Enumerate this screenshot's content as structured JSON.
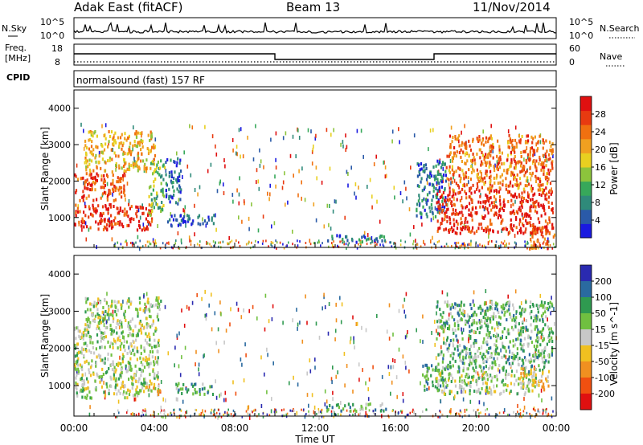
{
  "header": {
    "station": "Adak East (fitACF)",
    "beam": "Beam 13",
    "date": "11/Nov/2014"
  },
  "noise_panel": {
    "left_label": "N.Sky",
    "right_label": "N.Search",
    "left_ticks": [
      "10^5",
      "10^0"
    ],
    "right_ticks": [
      "10^5",
      "10^0"
    ]
  },
  "freq_panel": {
    "left_label_1": "Freq.",
    "left_label_2": "[MHz]",
    "left_ticks": [
      "18",
      "8"
    ],
    "right_ticks": [
      "60",
      "0"
    ],
    "right_label": "Nave",
    "cpid_label": "CPID",
    "mode": "normalsound (fast) 157 RF"
  },
  "chart_data": [
    {
      "type": "heatmap",
      "name": "power",
      "xlabel": "",
      "ylabel": "Slant Range [km]",
      "xlim": [
        "00:00",
        "24:00"
      ],
      "ylim": [
        180,
        4500
      ],
      "y_ticks": [
        "1000",
        "2000",
        "3000",
        "4000"
      ],
      "colorbar": {
        "label": "Power [dB]",
        "ticks": [
          "4",
          "8",
          "12",
          "16",
          "20",
          "24",
          "28"
        ],
        "colors": [
          "#1a1ae0",
          "#2a5aa8",
          "#2f8a7a",
          "#37a85a",
          "#8cc43c",
          "#e8d020",
          "#f0a020",
          "#f07010",
          "#e83a10",
          "#e01010"
        ]
      },
      "regions": [
        {
          "t0": 0.0,
          "t1": 3.9,
          "r0": 700,
          "r1": 1400,
          "level": 0.9
        },
        {
          "t0": 0.0,
          "t1": 2.5,
          "r0": 1500,
          "r1": 2300,
          "level": 0.85
        },
        {
          "t0": 0.5,
          "t1": 4.0,
          "r0": 2300,
          "r1": 3400,
          "level": 0.6
        },
        {
          "t0": 3.7,
          "t1": 4.5,
          "r0": 1100,
          "r1": 2600,
          "level": 0.4
        },
        {
          "t0": 4.5,
          "t1": 7.0,
          "r0": 800,
          "r1": 1100,
          "level": 0.12
        },
        {
          "t0": 4.5,
          "t1": 5.3,
          "r0": 1400,
          "r1": 2700,
          "level": 0.15
        },
        {
          "t0": 12.5,
          "t1": 15.5,
          "r0": 350,
          "r1": 550,
          "level": 0.25
        },
        {
          "t0": 17.0,
          "t1": 18.5,
          "r0": 1000,
          "r1": 2600,
          "level": 0.2
        },
        {
          "t0": 18.0,
          "t1": 23.8,
          "r0": 600,
          "r1": 1800,
          "level": 0.9
        },
        {
          "t0": 18.5,
          "t1": 23.8,
          "r0": 1800,
          "r1": 3300,
          "level": 0.75
        },
        {
          "t0": 22.5,
          "t1": 23.9,
          "r0": 180,
          "r1": 800,
          "level": 0.8
        }
      ]
    },
    {
      "type": "heatmap",
      "name": "velocity",
      "xlabel": "Time UT",
      "ylabel": "Slant Range [km]",
      "xlim": [
        "00:00",
        "24:00"
      ],
      "x_ticks": [
        "00:00",
        "04:00",
        "08:00",
        "12:00",
        "16:00",
        "20:00",
        "00:00"
      ],
      "ylim": [
        180,
        4500
      ],
      "y_ticks": [
        "1000",
        "2000",
        "3000",
        "4000"
      ],
      "colorbar": {
        "label": "Velocity [m s^-1]",
        "ticks": [
          "200",
          "100",
          "50",
          "15",
          "-15",
          "-50",
          "-100",
          "-200"
        ],
        "colors": [
          "#2a2ab0",
          "#2a6aa0",
          "#2f9a50",
          "#70c040",
          "#c8c8c8",
          "#f0c020",
          "#f09020",
          "#f05010",
          "#e01010"
        ]
      },
      "regions": [
        {
          "t0": 0.0,
          "t1": 4.2,
          "r0": 700,
          "r1": 2600,
          "level": 0.45
        },
        {
          "t0": 0.5,
          "t1": 4.3,
          "r0": 2600,
          "r1": 3400,
          "level": 0.45
        },
        {
          "t0": 3.5,
          "t1": 4.3,
          "r0": 800,
          "r1": 1100,
          "level": 0.62
        },
        {
          "t0": 5.0,
          "t1": 7.0,
          "r0": 800,
          "r1": 1100,
          "level": 0.32
        },
        {
          "t0": 12.5,
          "t1": 15.5,
          "r0": 350,
          "r1": 550,
          "level": 0.32
        },
        {
          "t0": 17.3,
          "t1": 18.5,
          "r0": 900,
          "r1": 1600,
          "level": 0.32
        },
        {
          "t0": 18.0,
          "t1": 23.0,
          "r0": 800,
          "r1": 1400,
          "level": 0.45
        },
        {
          "t0": 18.0,
          "t1": 23.8,
          "r0": 1400,
          "r1": 3300,
          "level": 0.35
        },
        {
          "t0": 22.2,
          "t1": 23.6,
          "r0": 900,
          "r1": 1500,
          "level": 0.6
        }
      ]
    }
  ]
}
